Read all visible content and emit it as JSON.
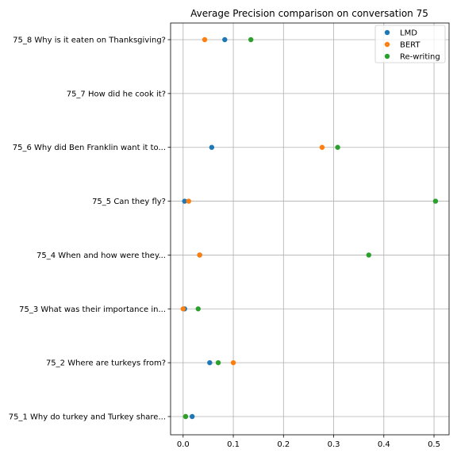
{
  "chart_data": {
    "type": "scatter",
    "title": "Average Precision comparison on conversation 75",
    "xlabel": "",
    "ylabel": "",
    "xlim": [
      -0.025,
      0.53
    ],
    "xticks": [
      0.0,
      0.1,
      0.2,
      0.3,
      0.4,
      0.5
    ],
    "xtick_labels": [
      "0.0",
      "0.1",
      "0.2",
      "0.3",
      "0.4",
      "0.5"
    ],
    "categories": [
      "75_1 Why do turkey and Turkey share...",
      "75_2 Where are turkeys from?",
      "75_3 What was their importance in...",
      "75_4 When and how were they...",
      "75_5 Can they fly?",
      "75_6 Why did Ben Franklin want it to...",
      "75_7 How did he cook it?",
      "75_8 Why is it eaten on Thanksgiving?"
    ],
    "series": [
      {
        "name": "LMD",
        "color": "#1f77b4",
        "values": [
          0.018,
          0.053,
          0.003,
          0.033,
          0.003,
          0.057,
          null,
          0.083
        ]
      },
      {
        "name": "BERT",
        "color": "#ff7f0e",
        "values": [
          0.005,
          0.1,
          0.0,
          0.033,
          0.011,
          0.277,
          null,
          0.043
        ]
      },
      {
        "name": "Re-writing",
        "color": "#2ca02c",
        "values": [
          0.005,
          0.07,
          0.03,
          0.37,
          0.503,
          0.308,
          null,
          0.135
        ]
      }
    ],
    "grid": true,
    "legend_position": "top-right"
  }
}
